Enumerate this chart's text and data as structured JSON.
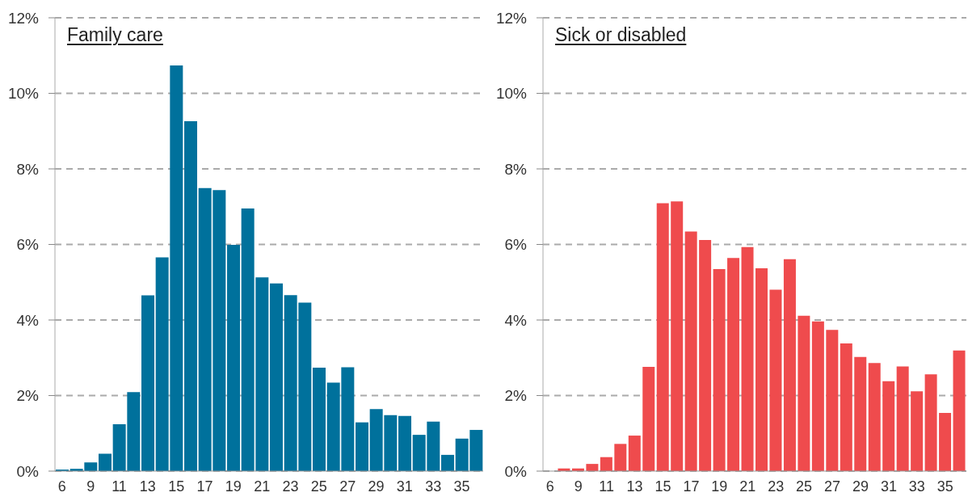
{
  "chart_data": [
    {
      "type": "bar",
      "title": "Family care",
      "categories": [
        "6",
        null,
        "9",
        null,
        "11",
        null,
        "13",
        null,
        "15",
        null,
        "17",
        null,
        "19",
        null,
        "21",
        null,
        "23",
        null,
        "25",
        null,
        "27",
        null,
        "29",
        null,
        "31",
        null,
        "33",
        null,
        "35",
        null
      ],
      "values": [
        0.04,
        0.06,
        0.23,
        0.46,
        1.24,
        2.09,
        4.65,
        5.66,
        10.74,
        9.26,
        7.49,
        7.44,
        5.99,
        6.95,
        5.13,
        4.97,
        4.66,
        4.46,
        2.74,
        2.34,
        2.75,
        1.29,
        1.64,
        1.48,
        1.46,
        0.96,
        1.31,
        0.43,
        0.86,
        1.09
      ],
      "color": "#00719c",
      "ylim": [
        0,
        12
      ],
      "yticks": [
        {
          "value": 0,
          "label": "0%"
        },
        {
          "value": 2,
          "label": "2%"
        },
        {
          "value": 4,
          "label": "4%"
        },
        {
          "value": 6,
          "label": "6%"
        },
        {
          "value": 8,
          "label": "8%"
        },
        {
          "value": 10,
          "label": "10%"
        },
        {
          "value": 12,
          "label": "12%"
        }
      ],
      "grid": "y"
    },
    {
      "type": "bar",
      "title": "Sick or disabled",
      "categories": [
        "6",
        null,
        "9",
        null,
        "11",
        null,
        "13",
        null,
        "15",
        null,
        "17",
        null,
        "19",
        null,
        "21",
        null,
        "23",
        null,
        "25",
        null,
        "27",
        null,
        "29",
        null,
        "31",
        null,
        "33",
        null,
        "35",
        null
      ],
      "values": [
        0,
        0.07,
        0.07,
        0.19,
        0.37,
        0.72,
        0.94,
        2.76,
        7.09,
        7.14,
        6.34,
        6.12,
        5.35,
        5.64,
        5.93,
        5.37,
        4.8,
        5.61,
        4.11,
        3.96,
        3.74,
        3.38,
        3.02,
        2.86,
        2.38,
        2.77,
        2.11,
        2.56,
        1.54,
        3.19
      ],
      "color": "#ef4b4d",
      "ylim": [
        0,
        12
      ],
      "yticks": [
        {
          "value": 0,
          "label": "0%"
        },
        {
          "value": 2,
          "label": "2%"
        },
        {
          "value": 4,
          "label": "4%"
        },
        {
          "value": 6,
          "label": "6%"
        },
        {
          "value": 8,
          "label": "8%"
        },
        {
          "value": 10,
          "label": "10%"
        },
        {
          "value": 12,
          "label": "12%"
        }
      ],
      "grid": "y"
    }
  ]
}
